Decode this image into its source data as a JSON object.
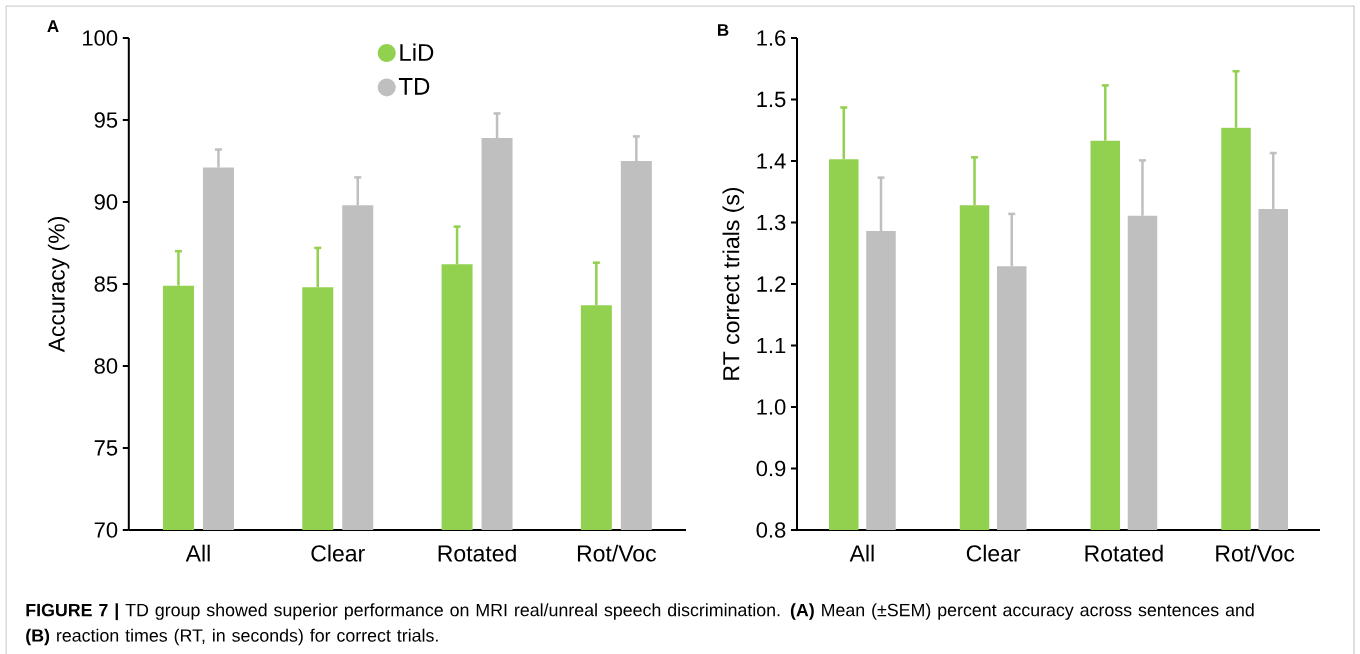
{
  "chart_data": [
    {
      "type": "bar",
      "title": "A",
      "categories": [
        "All",
        "Clear",
        "Rotated",
        "Rot/Voc"
      ],
      "ylabel": "Accuracy (%)",
      "ylim": [
        70,
        100
      ],
      "yticks": [
        70,
        75,
        80,
        85,
        90,
        95,
        100
      ],
      "legend": "top",
      "series": [
        {
          "name": "LiD",
          "color": "#92d050",
          "values": [
            84.9,
            84.8,
            86.2,
            83.7
          ],
          "errors": [
            2.1,
            2.4,
            2.3,
            2.6
          ]
        },
        {
          "name": "TD",
          "color": "#bfbfbf",
          "values": [
            92.1,
            89.8,
            93.9,
            92.5
          ],
          "errors": [
            1.1,
            1.7,
            1.5,
            1.5
          ]
        }
      ]
    },
    {
      "type": "bar",
      "title": "B",
      "categories": [
        "All",
        "Clear",
        "Rotated",
        "Rot/Voc"
      ],
      "ylabel": "RT correct trials (s)",
      "ylim": [
        0.8,
        1.6
      ],
      "yticks": [
        0.8,
        0.9,
        {
          "value": 1,
          "label": "1.0"
        },
        1.1,
        1.2,
        1.3,
        1.4,
        1.5,
        1.6
      ],
      "series": [
        {
          "color": "#92d050",
          "values": [
            1.403,
            1.328,
            1.433,
            1.454
          ],
          "errors": [
            0.084,
            0.078,
            0.09,
            0.092
          ]
        },
        {
          "color": "#bfbfbf",
          "values": [
            1.286,
            1.229,
            1.311,
            1.322
          ],
          "errors": [
            0.087,
            0.085,
            0.09,
            0.091
          ]
        }
      ],
      "annotations": [
        "**FIGURE 7 |** TD group showed superior performance on MRI real/unreal speech discrimination. **(A)** Mean (±SEM) percent accuracy across sentences and **(B)** reaction times (RT, in seconds) for correct trials."
      ]
    }
  ]
}
